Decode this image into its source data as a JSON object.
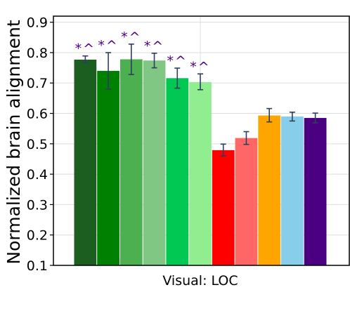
{
  "chart_data": {
    "type": "bar",
    "categories": [
      "Visual: LOC"
    ],
    "ylabel": "Normalized brain alignment",
    "ylim": [
      0.1,
      0.92
    ],
    "yticks": [
      0.1,
      0.2,
      0.3,
      0.4,
      0.5,
      0.6,
      0.7,
      0.8,
      0.9
    ],
    "ytick_labels": [
      "0.1",
      "0.2",
      "0.3",
      "0.4",
      "0.5",
      "0.6",
      "0.7",
      "0.8",
      "0.9"
    ],
    "grid": true,
    "bars": [
      {
        "value": 0.777,
        "err_low": 0.767,
        "err_high": 0.789,
        "color": "#1b5e20",
        "annotation": "*^"
      },
      {
        "value": 0.74,
        "err_low": 0.68,
        "err_high": 0.8,
        "color": "#008000",
        "annotation": "*^"
      },
      {
        "value": 0.778,
        "err_low": 0.728,
        "err_high": 0.828,
        "color": "#4caf50",
        "annotation": "*^"
      },
      {
        "value": 0.774,
        "err_low": 0.75,
        "err_high": 0.798,
        "color": "#81c784",
        "annotation": "*^"
      },
      {
        "value": 0.716,
        "err_low": 0.683,
        "err_high": 0.749,
        "color": "#00c853",
        "annotation": "*^"
      },
      {
        "value": 0.703,
        "err_low": 0.678,
        "err_high": 0.73,
        "color": "#90ee90",
        "annotation": "*^"
      },
      {
        "value": 0.479,
        "err_low": 0.46,
        "err_high": 0.499,
        "color": "#ff0000",
        "annotation": ""
      },
      {
        "value": 0.519,
        "err_low": 0.498,
        "err_high": 0.54,
        "color": "#ff6666",
        "annotation": ""
      },
      {
        "value": 0.593,
        "err_low": 0.572,
        "err_high": 0.616,
        "color": "#ffa500",
        "annotation": ""
      },
      {
        "value": 0.59,
        "err_low": 0.575,
        "err_high": 0.604,
        "color": "#87ceeb",
        "annotation": ""
      },
      {
        "value": 0.585,
        "err_low": 0.569,
        "err_high": 0.601,
        "color": "#4b0082",
        "annotation": ""
      }
    ],
    "colors": {
      "error_bar": "#2f3e5c",
      "annotation": "#4b0082",
      "grid": "#dddddd",
      "axis": "#000000"
    }
  }
}
